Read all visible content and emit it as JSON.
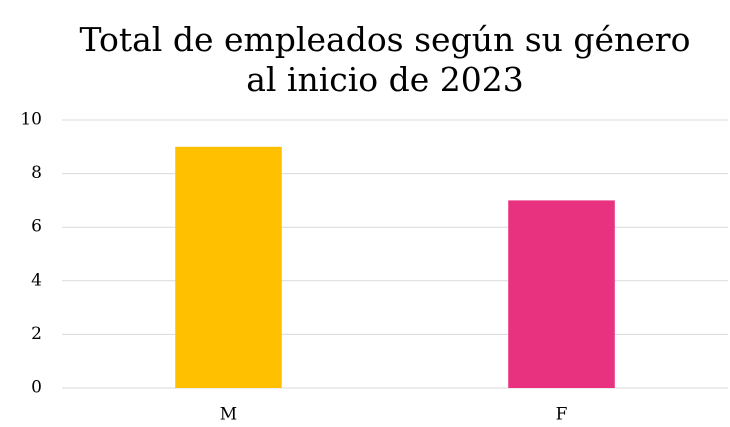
{
  "chart_data": {
    "type": "bar",
    "title": [
      "Total de empleados según su género",
      "al inicio de 2023"
    ],
    "categories": [
      "M",
      "F"
    ],
    "values": [
      9,
      7
    ],
    "colors": [
      "#ffc000",
      "#e8317f"
    ],
    "ylim": [
      0,
      10
    ],
    "yticks": [
      0,
      2,
      4,
      6,
      8,
      10
    ],
    "grid": true
  }
}
